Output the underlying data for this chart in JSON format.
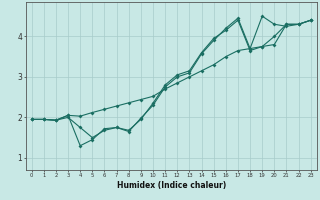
{
  "xlabel": "Humidex (Indice chaleur)",
  "bg_color": "#c8e8e5",
  "grid_color": "#a8ccca",
  "line_color": "#1a6e62",
  "xlim": [
    -0.5,
    23.5
  ],
  "ylim": [
    0.7,
    4.85
  ],
  "xticks": [
    0,
    1,
    2,
    3,
    4,
    5,
    6,
    7,
    8,
    9,
    10,
    11,
    12,
    13,
    14,
    15,
    16,
    17,
    18,
    19,
    20,
    21,
    22,
    23
  ],
  "yticks": [
    1,
    2,
    3,
    4
  ],
  "lines": [
    [
      1.95,
      1.95,
      1.93,
      2.0,
      1.75,
      1.5,
      1.68,
      1.75,
      1.68,
      1.95,
      2.35,
      2.8,
      3.05,
      3.15,
      3.6,
      3.95,
      4.15,
      4.4,
      3.65,
      3.75,
      4.0,
      4.3,
      4.3,
      4.4
    ],
    [
      1.95,
      1.95,
      1.93,
      2.05,
      1.3,
      1.45,
      1.72,
      1.75,
      1.65,
      1.98,
      2.3,
      2.75,
      3.0,
      3.1,
      3.57,
      3.9,
      4.2,
      4.45,
      3.7,
      4.5,
      4.3,
      4.25,
      4.3,
      4.4
    ],
    [
      1.95,
      1.95,
      1.93,
      2.05,
      2.03,
      2.12,
      2.2,
      2.28,
      2.36,
      2.44,
      2.52,
      2.7,
      2.85,
      3.0,
      3.15,
      3.3,
      3.5,
      3.65,
      3.7,
      3.75,
      3.8,
      4.3,
      4.3,
      4.4
    ]
  ]
}
